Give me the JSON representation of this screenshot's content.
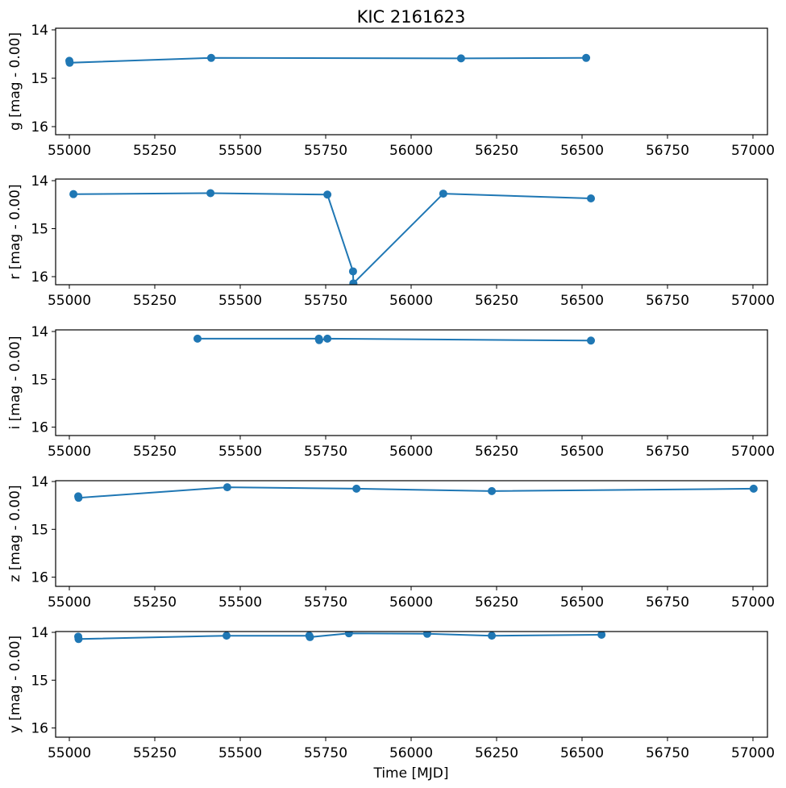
{
  "chart_data": {
    "type": "line",
    "title": "KIC 2161623",
    "xlabel": "Time [MJD]",
    "xlim": [
      54960,
      57040
    ],
    "x_ticks": [
      55000,
      55250,
      55500,
      55750,
      56000,
      56250,
      56500,
      56750,
      57000
    ],
    "y_ticks": [
      14,
      15,
      16
    ],
    "ylim_inverted": [
      16.2,
      13.97
    ],
    "grid": false,
    "legend": null,
    "marker": "circle",
    "line_color": "#1f77b4",
    "panels": [
      {
        "band": "g",
        "ylabel": "g [mag - 0.00]",
        "x": [
          55000,
          55001,
          55415,
          56146,
          56512
        ],
        "y": [
          14.64,
          14.68,
          14.58,
          14.59,
          14.58
        ]
      },
      {
        "band": "r",
        "ylabel": "r [mag - 0.00]",
        "x": [
          55012,
          55413,
          55755,
          55830,
          55831,
          56094,
          56526
        ],
        "y": [
          14.28,
          14.26,
          14.29,
          15.89,
          16.14,
          14.27,
          14.37
        ]
      },
      {
        "band": "i",
        "ylabel": "i [mag - 0.00]",
        "x": [
          55375,
          55730,
          55731,
          55755,
          56526
        ],
        "y": [
          14.15,
          14.15,
          14.18,
          14.15,
          14.19
        ]
      },
      {
        "band": "z",
        "ylabel": "z [mag - 0.00]",
        "x": [
          55026,
          55027,
          55462,
          55840,
          56236,
          57002
        ],
        "y": [
          14.31,
          14.34,
          14.12,
          14.15,
          14.2,
          14.15
        ]
      },
      {
        "band": "y",
        "ylabel": "y [mag - 0.00]",
        "x": [
          55026,
          55027,
          55460,
          55702,
          55704,
          55818,
          56047,
          56236,
          56557
        ],
        "y": [
          14.09,
          14.14,
          14.07,
          14.07,
          14.1,
          14.02,
          14.03,
          14.07,
          14.05
        ]
      }
    ]
  }
}
